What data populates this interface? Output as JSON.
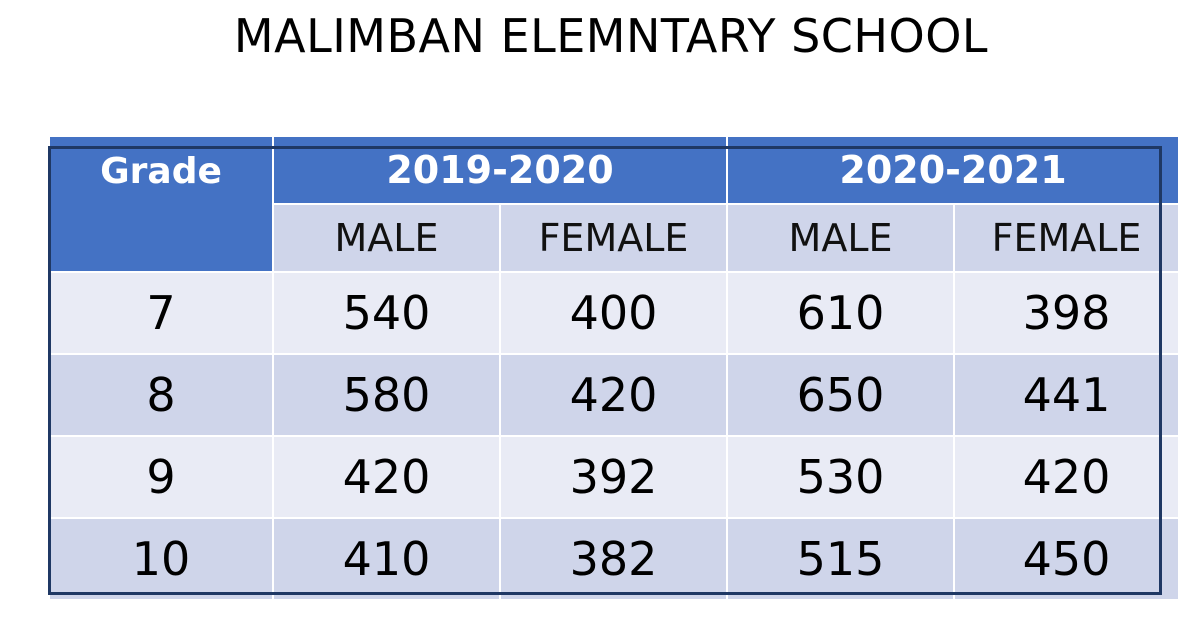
{
  "title": "MALIMBAN ELEMNTARY SCHOOL",
  "table": {
    "grade_header": "Grade",
    "years": [
      "2019-2020",
      "2020-2021"
    ],
    "subheaders": [
      "MALE",
      "FEMALE",
      "MALE",
      "FEMALE"
    ],
    "rows": [
      {
        "grade": "7",
        "values": [
          "540",
          "400",
          "610",
          "398"
        ]
      },
      {
        "grade": "8",
        "values": [
          "580",
          "420",
          "650",
          "441"
        ]
      },
      {
        "grade": "9",
        "values": [
          "420",
          "392",
          "530",
          "420"
        ]
      },
      {
        "grade": "10",
        "values": [
          "410",
          "382",
          "515",
          "450"
        ]
      }
    ]
  },
  "colors": {
    "header": "#4472c4",
    "band_light": "#e9ebf5",
    "band_dark": "#cfd5ea",
    "outline": "#1f3864"
  }
}
